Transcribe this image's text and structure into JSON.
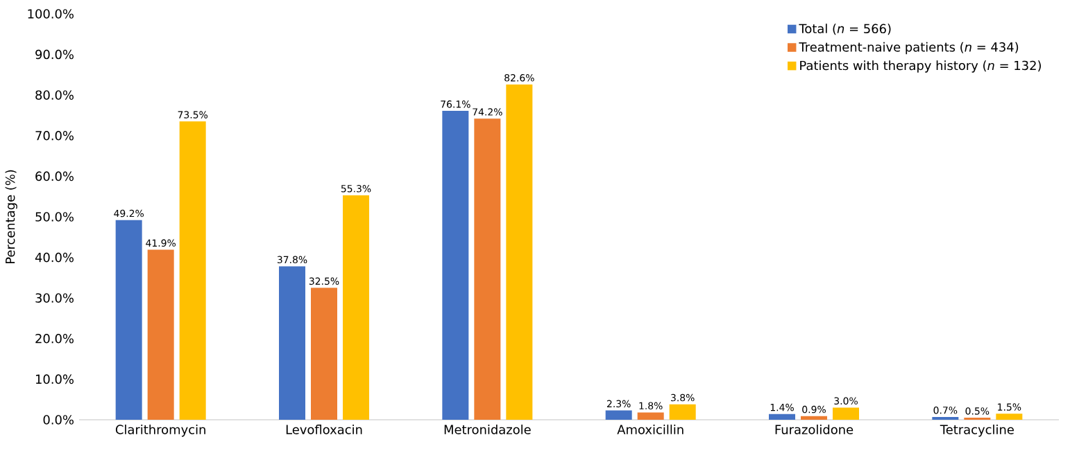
{
  "chart_data": {
    "type": "bar",
    "ylabel": "Percentage (%)",
    "categories": [
      "Clarithromycin",
      "Levofloxacin",
      "Metronidazole",
      "Amoxicillin",
      "Furazolidone",
      "Tetracycline"
    ],
    "series": [
      {
        "name": "Total (*n* = 566)",
        "color": "#4472c4",
        "values": [
          49.2,
          37.8,
          76.1,
          2.3,
          1.4,
          0.7
        ],
        "value_labels": [
          "49.2%",
          "37.8%",
          "76.1%",
          "2.3%",
          "1.4%",
          "0.7%"
        ]
      },
      {
        "name": "Treatment-naive patients (*n* = 434)",
        "color": "#ed7d31",
        "values": [
          41.9,
          32.5,
          74.2,
          1.8,
          0.9,
          0.5
        ],
        "value_labels": [
          "41.9%",
          "32.5%",
          "74.2%",
          "1.8%",
          "0.9%",
          "0.5%"
        ]
      },
      {
        "name": "Patients with therapy history (*n* = 132)",
        "color": "#ffc000",
        "values": [
          73.5,
          55.3,
          82.6,
          3.8,
          3.0,
          1.5
        ],
        "value_labels": [
          "73.5%",
          "55.3%",
          "82.6%",
          "3.8%",
          "3.0%",
          "1.5%"
        ]
      }
    ],
    "ylim": [
      0,
      100
    ],
    "yticks": [
      {
        "value": 0,
        "label": "0.0%"
      },
      {
        "value": 10,
        "label": "10.0%"
      },
      {
        "value": 20,
        "label": "20.0%"
      },
      {
        "value": 30,
        "label": "30.0%"
      },
      {
        "value": 40,
        "label": "40.0%"
      },
      {
        "value": 50,
        "label": "50.0%"
      },
      {
        "value": 60,
        "label": "60.0%"
      },
      {
        "value": 70,
        "label": "70.0%"
      },
      {
        "value": 80,
        "label": "80.0%"
      },
      {
        "value": 90,
        "label": "90.0%"
      },
      {
        "value": 100,
        "label": "100.0%"
      }
    ],
    "legend": "top right",
    "grid": false
  }
}
